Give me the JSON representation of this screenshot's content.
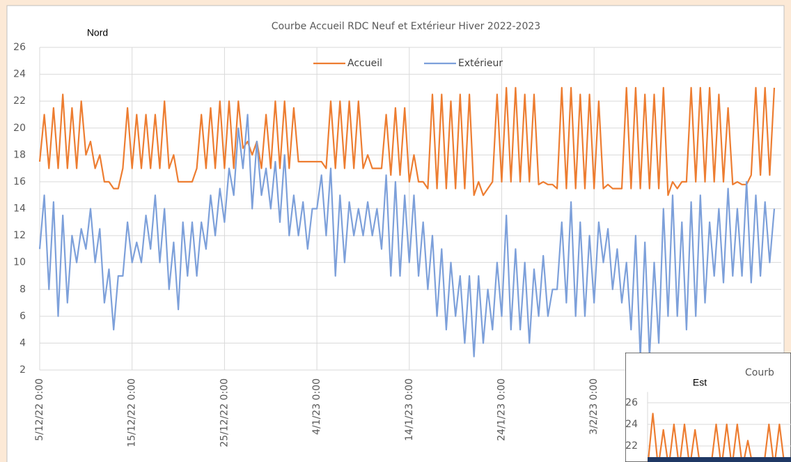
{
  "chart_data": [
    {
      "type": "line",
      "title": "Courbe Accueil RDC Neuf et Extérieur Hiver 2022-2023",
      "annotation": "Nord",
      "categories": [
        "5/12/22 0:00",
        null,
        null,
        null,
        null,
        null,
        null,
        null,
        null,
        null,
        null,
        null,
        null,
        null,
        null,
        null,
        null,
        null,
        null,
        null,
        "15/12/22 0:00",
        null,
        null,
        null,
        null,
        null,
        null,
        null,
        null,
        null,
        null,
        null,
        null,
        null,
        null,
        null,
        null,
        null,
        null,
        null,
        "25/12/22 0:00",
        null,
        null,
        null,
        null,
        null,
        null,
        null,
        null,
        null,
        null,
        null,
        null,
        null,
        null,
        null,
        null,
        null,
        null,
        null,
        "4/1/23 0:00",
        null,
        null,
        null,
        null,
        null,
        null,
        null,
        null,
        null,
        null,
        null,
        null,
        null,
        null,
        null,
        null,
        null,
        null,
        null,
        "14/1/23 0:00",
        null,
        null,
        null,
        null,
        null,
        null,
        null,
        null,
        null,
        null,
        null,
        null,
        null,
        null,
        null,
        null,
        null,
        null,
        null,
        "24/1/23 0:00",
        null,
        null,
        null,
        null,
        null,
        null,
        null,
        null,
        null,
        null,
        null,
        null,
        null,
        null,
        null,
        null,
        null,
        null,
        null,
        "3/2/23 0:00",
        null,
        null,
        null,
        null,
        null,
        null,
        null,
        null,
        null,
        null,
        null,
        null,
        null,
        null,
        null,
        null,
        null,
        null,
        null,
        null,
        null,
        null,
        null,
        null,
        null,
        null,
        null,
        null,
        null,
        null,
        null,
        null,
        null,
        null,
        null,
        null,
        null,
        null,
        null
      ],
      "series": [
        {
          "name": "Accueil",
          "color": "#ED7D31",
          "values": [
            17.5,
            21,
            17,
            21.5,
            17,
            22.5,
            17,
            21.5,
            17,
            22,
            18,
            19,
            17,
            18,
            16,
            16,
            15.5,
            15.5,
            17,
            21.5,
            17,
            21,
            17,
            21,
            17,
            21,
            17,
            22,
            17,
            18,
            16,
            16,
            16,
            16,
            17,
            21,
            17,
            21.5,
            17,
            22,
            17,
            22,
            17,
            22,
            18.5,
            19,
            18,
            19,
            17,
            21,
            17,
            22,
            17,
            22,
            17,
            21.5,
            17.5,
            17.5,
            17.5,
            17.5,
            17.5,
            17.5,
            17,
            22,
            17,
            22,
            17,
            22,
            17,
            22,
            17,
            18,
            17,
            17,
            17,
            21,
            16.5,
            21.5,
            16.5,
            21.5,
            16,
            18,
            16,
            16,
            15.5,
            22.5,
            15.5,
            22.5,
            15.5,
            22,
            15.5,
            22.5,
            15.5,
            22.5,
            15,
            16,
            15,
            15.5,
            16,
            22.5,
            16,
            23,
            16,
            23,
            16,
            22.5,
            16,
            22.5,
            15.8,
            16,
            15.8,
            15.8,
            15.5,
            23,
            15.5,
            23,
            15.5,
            22.5,
            15.5,
            22.5,
            15.5,
            22,
            15.5,
            15.8,
            15.5,
            15.5,
            15.5,
            23,
            15.5,
            23,
            15.5,
            22.5,
            15.5,
            22.5,
            15.5,
            23,
            15,
            16,
            15.5,
            16,
            16,
            23,
            16,
            23,
            16,
            23,
            16,
            22.5,
            16,
            21.5,
            15.8,
            16,
            15.8,
            15.8,
            16.5,
            23,
            16.5,
            23,
            16.5,
            23
          ]
        },
        {
          "name": "Extérieur",
          "color": "#7DA0DA",
          "values": [
            11,
            15,
            8,
            14.5,
            6,
            13.5,
            7,
            12,
            10,
            12.5,
            11,
            14,
            10,
            12.5,
            7,
            9.5,
            5,
            9,
            9,
            13,
            10,
            11.5,
            10,
            13.5,
            11,
            15,
            10,
            14,
            8,
            11.5,
            6.5,
            13,
            9,
            13,
            9,
            13,
            11,
            15,
            12,
            15.5,
            13,
            17,
            15,
            20,
            17,
            21,
            14,
            19,
            15,
            17,
            14,
            17.5,
            13,
            18,
            12,
            15,
            12,
            14.5,
            11,
            14,
            14,
            16.5,
            12,
            17,
            9,
            15,
            10,
            14.5,
            12,
            14,
            12,
            14.5,
            12,
            14,
            11,
            16.5,
            9,
            16,
            9,
            15,
            10,
            15,
            9,
            13,
            8,
            12,
            6,
            11,
            5,
            10,
            6,
            9,
            4,
            9,
            3,
            9,
            4,
            8,
            5,
            10,
            6,
            13.5,
            5,
            11,
            5,
            10,
            4,
            9.5,
            6,
            10.5,
            6,
            8,
            8,
            13,
            7,
            14.5,
            6,
            13,
            6,
            12,
            7,
            13,
            10,
            12.5,
            8,
            11,
            7,
            10,
            5,
            12,
            3,
            11.5,
            3,
            10,
            4,
            14,
            6,
            15,
            6,
            13,
            5,
            14.5,
            6,
            15,
            7,
            13,
            9,
            14,
            8.5,
            15.5,
            9,
            14,
            9,
            16,
            8.5,
            15,
            9,
            14.5,
            10,
            14
          ]
        }
      ],
      "ylim": [
        2,
        26
      ],
      "yticks": [
        2,
        4,
        6,
        8,
        10,
        12,
        14,
        16,
        18,
        20,
        22,
        24,
        26
      ],
      "grid": true,
      "legend": "top"
    },
    {
      "type": "line",
      "title": "Courb",
      "annotation": "Est",
      "values": [
        20,
        25,
        20,
        23.5,
        20,
        24,
        20,
        24,
        20,
        23.5,
        20,
        20,
        20,
        24,
        20,
        24,
        20,
        24,
        20,
        22.5,
        20,
        20,
        20,
        24,
        20,
        24,
        20
      ],
      "color": "#ED7D31",
      "ylim": [
        21,
        27
      ],
      "yticks": [
        22,
        24,
        26
      ],
      "grid": true
    }
  ]
}
